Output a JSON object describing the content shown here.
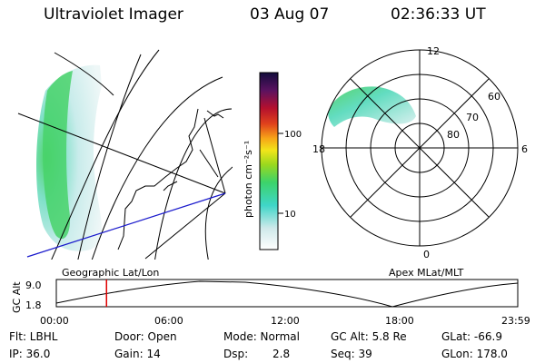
{
  "header": {
    "title": "Ultraviolet Imager",
    "date": "03 Aug 07",
    "time": "02:36:33 UT"
  },
  "colorbar": {
    "label": "photon cm⁻²s⁻¹",
    "ticks": [
      "100",
      "10"
    ]
  },
  "polar": {
    "clock": [
      "12",
      "18",
      "6",
      "0"
    ],
    "lat": [
      "60",
      "70",
      "80"
    ]
  },
  "panels": {
    "left_label": "Geographic Lat/Lon",
    "right_label": "Apex MLat/MLT"
  },
  "timeline": {
    "ylabel": "GC Alt",
    "y_ticks": [
      "9.0",
      "1.8"
    ],
    "x_ticks": [
      "00:00",
      "06:00",
      "12:00",
      "18:00",
      "23:59"
    ],
    "marker_time": "02:36:33"
  },
  "info": {
    "flt": "Flt: LBHL",
    "ip": "IP: 36.0",
    "door": "Door: Open",
    "gain": "Gain: 14",
    "mode": "Mode: Normal",
    "dsp_label": "Dsp:",
    "dsp_value": "2.8",
    "gcalt": "GC Alt: 5.8 Re",
    "seq": "Seq: 39",
    "glat": "GLat: -66.9",
    "glon": "GLon: 178.0"
  }
}
